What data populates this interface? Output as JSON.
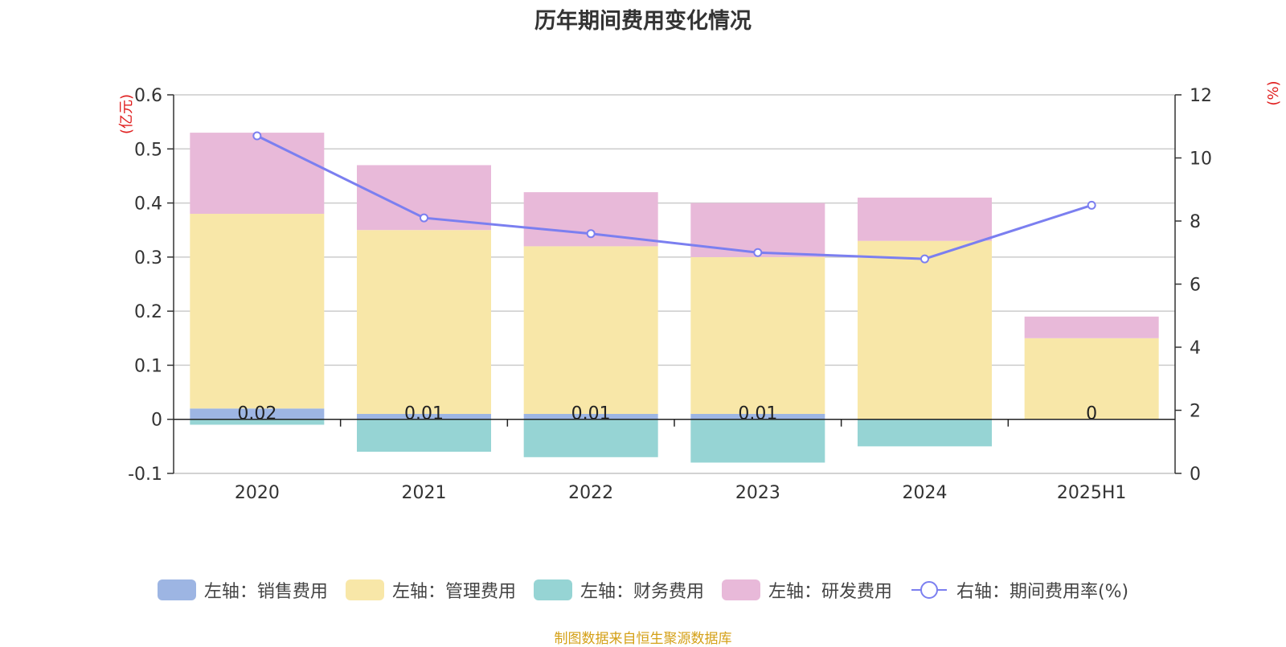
{
  "chart_data": {
    "type": "bar",
    "title": "历年期间费用变化情况",
    "categories": [
      "2020",
      "2021",
      "2022",
      "2023",
      "2024",
      "2025H1"
    ],
    "y_left_label": "(亿元)",
    "y_right_label": "(%)",
    "y_left_ticks": [
      "0.6",
      "0.5",
      "0.4",
      "0.3",
      "0.2",
      "0.1",
      "0",
      "-0.1"
    ],
    "y_right_ticks": [
      "12",
      "10",
      "8",
      "6",
      "4",
      "2",
      "0"
    ],
    "ylim_left": [
      -0.1,
      0.6
    ],
    "ylim_right": [
      0,
      12
    ],
    "grid": true,
    "legend_position": "bottom",
    "series": [
      {
        "name": "左轴：销售费用",
        "axis": "left",
        "type": "bar",
        "color": "#9db5e3",
        "values": [
          0.02,
          0.01,
          0.01,
          0.01,
          0,
          0
        ],
        "data_labels": [
          "0.02",
          "0.01",
          "0.01",
          "0.01",
          "",
          "0"
        ]
      },
      {
        "name": "左轴：管理费用",
        "axis": "left",
        "type": "bar",
        "color": "#f8e7a8",
        "values": [
          0.36,
          0.34,
          0.31,
          0.29,
          0.33,
          0.15
        ]
      },
      {
        "name": "左轴：财务费用",
        "axis": "left",
        "type": "bar",
        "color": "#96d4d4",
        "values": [
          -0.01,
          -0.06,
          -0.07,
          -0.08,
          -0.05,
          0
        ]
      },
      {
        "name": "左轴：研发费用",
        "axis": "left",
        "type": "bar",
        "color": "#e8b9d9",
        "values": [
          0.15,
          0.12,
          0.1,
          0.1,
          0.08,
          0.04
        ]
      },
      {
        "name": "右轴：期间费用率(%)",
        "axis": "right",
        "type": "line",
        "color": "#7b7ff0",
        "values": [
          10.7,
          8.1,
          7.6,
          7.0,
          6.8,
          8.5
        ]
      }
    ]
  },
  "source_note": "制图数据来自恒生聚源数据库"
}
